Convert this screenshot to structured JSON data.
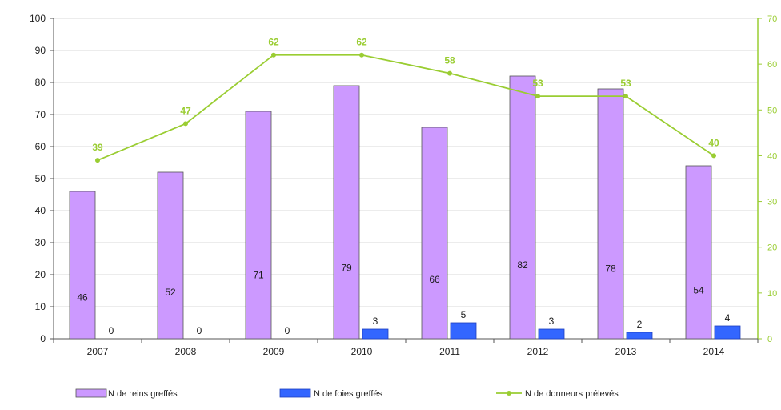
{
  "chart_data": {
    "type": "bar",
    "categories": [
      "2007",
      "2008",
      "2009",
      "2010",
      "2011",
      "2012",
      "2013",
      "2014"
    ],
    "series": [
      {
        "name": "N de reins greffés",
        "type": "bar",
        "axis": "left",
        "color": "#cc99ff",
        "values": [
          46,
          52,
          71,
          79,
          66,
          82,
          78,
          54
        ]
      },
      {
        "name": "N de foies greffés",
        "type": "bar",
        "axis": "left",
        "color": "#3366ff",
        "values": [
          0,
          0,
          0,
          3,
          5,
          3,
          2,
          4
        ]
      },
      {
        "name": "N de donneurs prélevés",
        "type": "line",
        "axis": "right",
        "color": "#9acd32",
        "values": [
          39,
          47,
          62,
          62,
          58,
          53,
          53,
          40
        ]
      }
    ],
    "ylim": [
      0,
      100
    ],
    "yticks": [
      "0",
      "10",
      "20",
      "30",
      "40",
      "50",
      "60",
      "70",
      "80",
      "90",
      "100"
    ],
    "y2lim": [
      0,
      70
    ],
    "y2ticks": [
      "0",
      "10",
      "20",
      "30",
      "40",
      "50",
      "60",
      "70"
    ],
    "grid": true,
    "legend_position": "bottom"
  }
}
